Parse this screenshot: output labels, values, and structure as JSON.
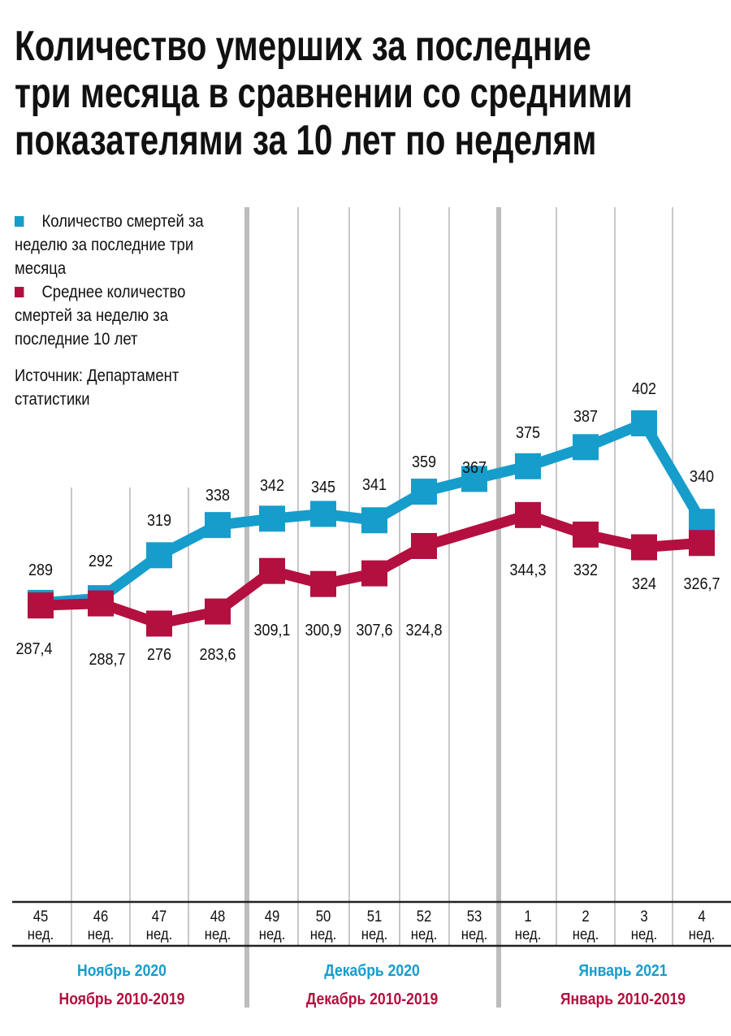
{
  "title_lines": [
    "Количество умерших  за последние",
    "три месяца в сравнении со средними",
    "показателями за 10 лет по неделям"
  ],
  "colors": {
    "current": "#169dcc",
    "average": "#b3103f",
    "grid": "#c8c8c8",
    "thick_grid": "#bdbdbd"
  },
  "chart_data": {
    "type": "line",
    "title": "Количество умерших  за последние три месяца в сравнении со средними показателями за 10 лет по неделям",
    "categories": [
      {
        "num": "45",
        "unit": "нед."
      },
      {
        "num": "46",
        "unit": "нед."
      },
      {
        "num": "47",
        "unit": "нед."
      },
      {
        "num": "48",
        "unit": "нед."
      },
      {
        "num": "49",
        "unit": "нед."
      },
      {
        "num": "50",
        "unit": "нед."
      },
      {
        "num": "51",
        "unit": "нед."
      },
      {
        "num": "52",
        "unit": "нед."
      },
      {
        "num": "53",
        "unit": "нед."
      },
      {
        "num": "1",
        "unit": "нед."
      },
      {
        "num": "2",
        "unit": "нед."
      },
      {
        "num": "3",
        "unit": "нед."
      },
      {
        "num": "4",
        "unit": "нед."
      }
    ],
    "series": [
      {
        "name": "Количество смертей за неделю за последние три месяца",
        "values": [
          289,
          292,
          319,
          338,
          342,
          345,
          341,
          359,
          367,
          375,
          387,
          402,
          340
        ],
        "labels": [
          "289",
          "292",
          "319",
          "338",
          "342",
          "345",
          "341",
          "359",
          "367",
          "375",
          "387",
          "402",
          "340"
        ]
      },
      {
        "name": "Среднее количество смертей за неделю за последние 10 лет",
        "values": [
          287.4,
          288.7,
          276,
          283.6,
          309.1,
          300.9,
          307.6,
          324.8,
          null,
          344.3,
          332,
          324,
          326.7
        ],
        "labels": [
          "287,4",
          "288,7",
          "276",
          "283,6",
          "309,1",
          "300,9",
          "307,6",
          "324,8",
          "",
          "344,3",
          "332",
          "324",
          "326,7"
        ]
      }
    ],
    "month_groups": [
      {
        "current": "Ноябрь 2020",
        "average": "Ноябрь 2010-2019"
      },
      {
        "current": "Декабрь 2020",
        "average": "Декабрь 2010-2019"
      },
      {
        "current": "Январь 2021",
        "average": "Январь 2010-2019"
      }
    ],
    "legend": [
      "Количество смертей за неделю за последние три месяца",
      "Среднее количество смертей за неделю за последние 10 лет"
    ],
    "legend_placement": "top-left",
    "source": "Источник: Департамент статистики",
    "grid": "vertical"
  }
}
